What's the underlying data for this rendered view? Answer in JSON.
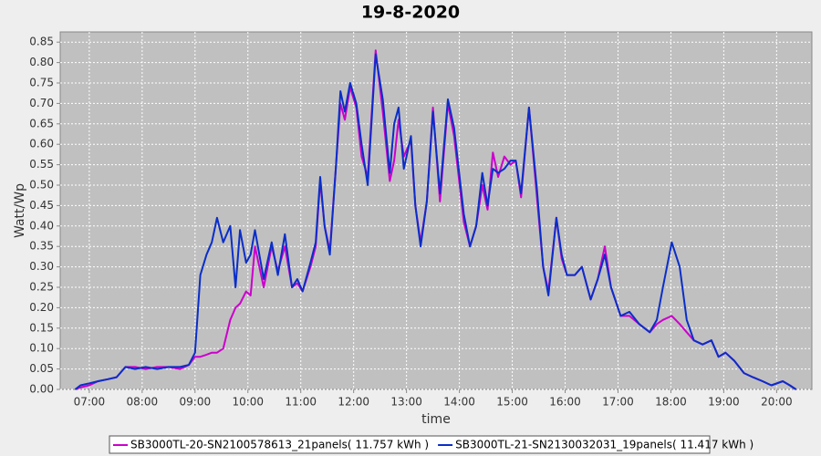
{
  "chart_data": {
    "type": "line",
    "title": "19-8-2020",
    "x_label": "time",
    "y_label": "Watt/Wp",
    "x": [
      "06:44",
      "06:50",
      "07:00",
      "07:10",
      "07:21",
      "07:31",
      "07:41",
      "07:52",
      "08:04",
      "08:17",
      "08:30",
      "08:43",
      "08:53",
      "09:00",
      "09:06",
      "09:13",
      "09:19",
      "09:25",
      "09:32",
      "09:40",
      "09:46",
      "09:51",
      "09:58",
      "10:03",
      "10:08",
      "10:18",
      "10:27",
      "10:34",
      "10:42",
      "10:50",
      "10:56",
      "11:02",
      "11:11",
      "11:17",
      "11:22",
      "11:27",
      "11:33",
      "11:40",
      "11:45",
      "11:50",
      "11:56",
      "12:03",
      "12:09",
      "12:16",
      "12:25",
      "12:33",
      "12:41",
      "12:46",
      "12:51",
      "12:57",
      "13:05",
      "13:10",
      "13:16",
      "13:23",
      "13:30",
      "13:38",
      "13:47",
      "13:54",
      "14:05",
      "14:12",
      "14:19",
      "14:26",
      "14:32",
      "14:38",
      "14:44",
      "14:51",
      "14:58",
      "15:04",
      "15:10",
      "15:19",
      "15:28",
      "15:35",
      "15:41",
      "15:50",
      "15:56",
      "16:02",
      "16:11",
      "16:19",
      "16:29",
      "16:37",
      "16:45",
      "16:52",
      "17:03",
      "17:13",
      "17:24",
      "17:36",
      "17:44",
      "17:51",
      "18:01",
      "18:10",
      "18:18",
      "18:26",
      "18:36",
      "18:46",
      "18:54",
      "19:02",
      "19:12",
      "19:23",
      "19:33",
      "19:44",
      "19:54",
      "20:07",
      "20:15",
      "20:22"
    ],
    "series": [
      {
        "name": "SB3000TL-20-SN2100578613_21panels( 11.757 kWh )",
        "color": "#cc00cc",
        "values": [
          0,
          0.005,
          0.01,
          0.02,
          0.025,
          0.03,
          0.055,
          0.055,
          0.05,
          0.055,
          0.055,
          0.05,
          0.06,
          0.08,
          0.08,
          0.085,
          0.09,
          0.09,
          0.1,
          0.17,
          0.2,
          0.21,
          0.24,
          0.23,
          0.35,
          0.25,
          0.35,
          0.29,
          0.35,
          0.25,
          0.26,
          0.24,
          0.3,
          0.35,
          0.51,
          0.4,
          0.34,
          0.55,
          0.7,
          0.66,
          0.74,
          0.69,
          0.57,
          0.52,
          0.83,
          0.68,
          0.51,
          0.56,
          0.66,
          0.57,
          0.61,
          0.45,
          0.36,
          0.46,
          0.69,
          0.46,
          0.7,
          0.62,
          0.41,
          0.35,
          0.4,
          0.5,
          0.44,
          0.58,
          0.52,
          0.57,
          0.55,
          0.56,
          0.47,
          0.69,
          0.47,
          0.3,
          0.24,
          0.42,
          0.32,
          0.28,
          0.28,
          0.3,
          0.22,
          0.27,
          0.35,
          0.25,
          0.18,
          0.18,
          0.16,
          0.14,
          0.16,
          0.17,
          0.18,
          0.16,
          0.14,
          0.12,
          0.11,
          0.12,
          0.08,
          0.09,
          0.07,
          0.04,
          0.03,
          0.02,
          0.01,
          0.02,
          0.01,
          0
        ]
      },
      {
        "name": "SB3000TL-21-SN2130032031_19panels( 11.417 kWh )",
        "color": "#0a2ec8",
        "values": [
          0,
          0.01,
          0.015,
          0.02,
          0.025,
          0.03,
          0.055,
          0.05,
          0.055,
          0.05,
          0.055,
          0.055,
          0.06,
          0.09,
          0.28,
          0.33,
          0.36,
          0.42,
          0.36,
          0.4,
          0.25,
          0.39,
          0.31,
          0.33,
          0.39,
          0.27,
          0.36,
          0.28,
          0.38,
          0.25,
          0.27,
          0.24,
          0.31,
          0.36,
          0.52,
          0.4,
          0.33,
          0.55,
          0.73,
          0.68,
          0.75,
          0.7,
          0.6,
          0.5,
          0.82,
          0.71,
          0.53,
          0.65,
          0.69,
          0.54,
          0.62,
          0.45,
          0.35,
          0.46,
          0.68,
          0.48,
          0.71,
          0.64,
          0.43,
          0.35,
          0.4,
          0.53,
          0.45,
          0.54,
          0.53,
          0.54,
          0.56,
          0.56,
          0.48,
          0.69,
          0.49,
          0.3,
          0.23,
          0.42,
          0.33,
          0.28,
          0.28,
          0.3,
          0.22,
          0.27,
          0.33,
          0.25,
          0.18,
          0.19,
          0.16,
          0.14,
          0.17,
          0.25,
          0.36,
          0.3,
          0.17,
          0.12,
          0.11,
          0.12,
          0.08,
          0.09,
          0.07,
          0.04,
          0.03,
          0.02,
          0.01,
          0.02,
          0.01,
          0
        ]
      }
    ],
    "xlim": [
      "06:27",
      "20:40"
    ],
    "xticks": [
      "07:00",
      "08:00",
      "09:00",
      "10:00",
      "11:00",
      "12:00",
      "13:00",
      "14:00",
      "15:00",
      "16:00",
      "17:00",
      "18:00",
      "19:00",
      "20:00"
    ],
    "ylim": [
      0,
      0.875
    ],
    "yticks": [
      {
        "value": 0,
        "label": "0.00"
      },
      0.05,
      {
        "value": 0.1,
        "label": "0.10"
      },
      0.15,
      {
        "value": 0.2,
        "label": "0.20"
      },
      0.25,
      {
        "value": 0.3,
        "label": "0.30"
      },
      0.35,
      {
        "value": 0.4,
        "label": "0.40"
      },
      0.45,
      {
        "value": 0.5,
        "label": "0.50"
      },
      0.55,
      {
        "value": 0.6,
        "label": "0.60"
      },
      0.65,
      {
        "value": 0.7,
        "label": "0.70"
      },
      0.75,
      {
        "value": 0.8,
        "label": "0.80"
      },
      0.85
    ],
    "grid": true,
    "legend": "bottom"
  }
}
